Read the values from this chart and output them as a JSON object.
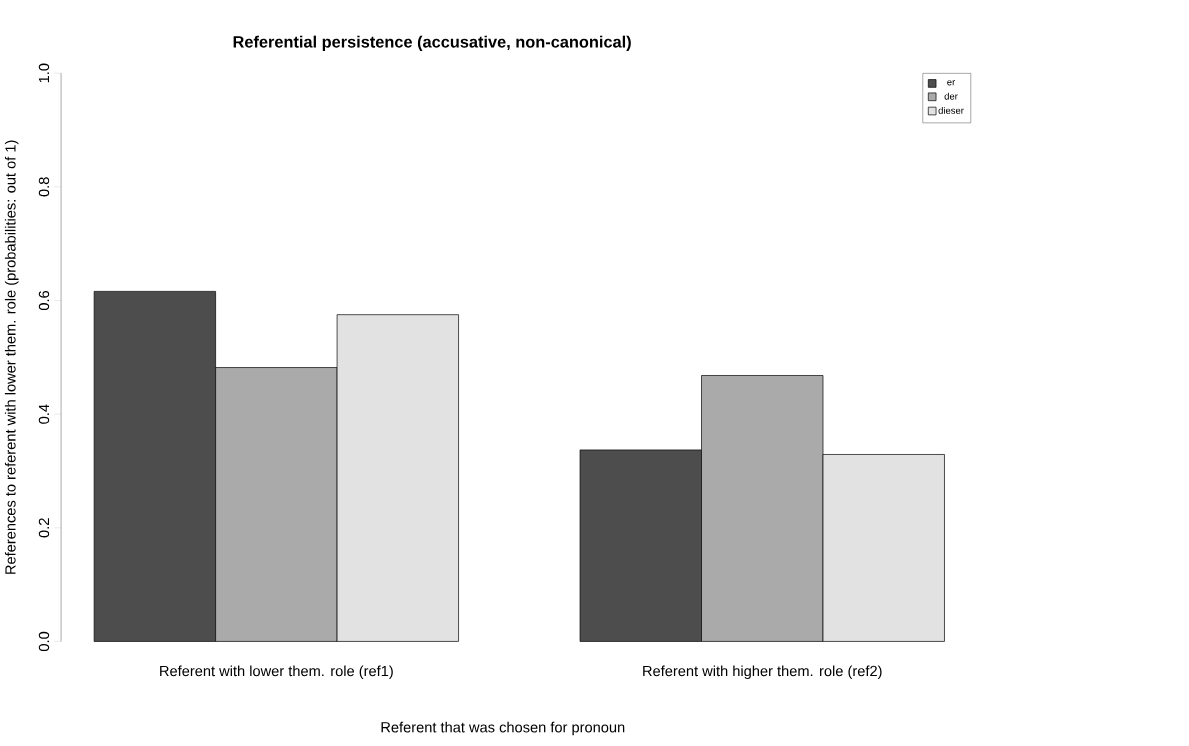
{
  "chart_data": {
    "type": "bar",
    "title": "Referential persistence (accusative, non-canonical)",
    "xlabel": "Referent that was chosen for pronoun",
    "ylabel": "References to referent with lower them. role (probabilities: out of 1)",
    "categories": [
      "Referent with lower them. role (ref1)",
      "Referent with higher them. role (ref2)"
    ],
    "series": [
      {
        "name": "er",
        "color": "#4d4d4d",
        "values": [
          0.616,
          0.337
        ]
      },
      {
        "name": "der",
        "color": "#aaaaaa",
        "values": [
          0.482,
          0.468
        ]
      },
      {
        "name": "dieser",
        "color": "#e2e2e2",
        "values": [
          0.575,
          0.329
        ]
      }
    ],
    "ylim": [
      0,
      1
    ],
    "yticks": [
      {
        "value": 0,
        "label": "0.0"
      },
      0.2,
      0.4,
      0.6,
      0.8,
      {
        "value": 1,
        "label": "1.0"
      }
    ],
    "legend": "top right"
  }
}
